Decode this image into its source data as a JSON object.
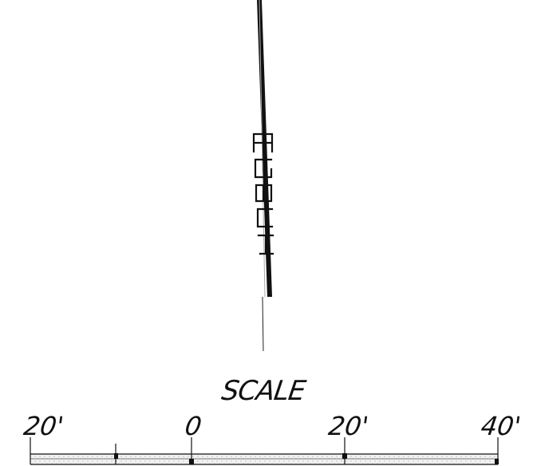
{
  "drawing": {
    "colors": {
      "ink": "#111111",
      "fill_hatch": "#cfcfcf"
    }
  },
  "scale_bar": {
    "title": "SCALE",
    "unit": "feet",
    "tick_labels": [
      "20'",
      "0",
      "20'",
      "40'"
    ],
    "tick_values_ft": [
      -20,
      0,
      20,
      40
    ],
    "subdivision_at_ft": -10
  }
}
